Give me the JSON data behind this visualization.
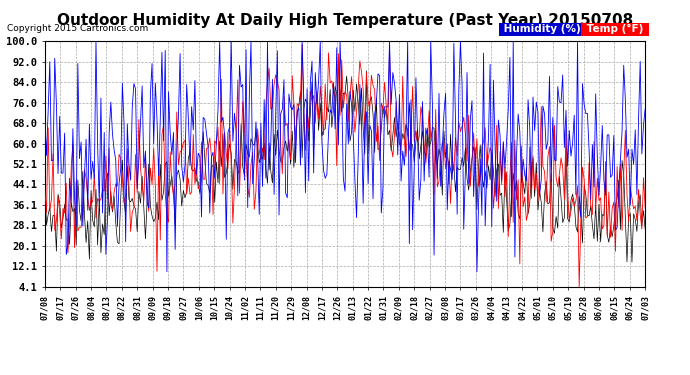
{
  "title": "Outdoor Humidity At Daily High Temperature (Past Year) 20150708",
  "copyright": "Copyright 2015 Cartronics.com",
  "legend_humidity": "Humidity (%)",
  "legend_temp": "Temp (°F)",
  "yticks": [
    4.1,
    12.1,
    20.1,
    28.1,
    36.1,
    44.1,
    52.1,
    60.0,
    68.0,
    76.0,
    84.0,
    92.0,
    100.0
  ],
  "ylim": [
    4.1,
    100.0
  ],
  "bg_color": "#ffffff",
  "plot_bg": "#ffffff",
  "grid_color": "#aaaaaa",
  "title_fontsize": 11,
  "color_humidity": "#0000ff",
  "color_temp": "#ff0000",
  "color_black": "#000000",
  "xtick_labels": [
    "07/08",
    "07/17",
    "07/26",
    "08/04",
    "08/13",
    "08/22",
    "08/31",
    "09/09",
    "09/18",
    "09/27",
    "10/06",
    "10/15",
    "10/24",
    "11/02",
    "11/11",
    "11/20",
    "11/29",
    "12/08",
    "12/17",
    "12/26",
    "01/13",
    "01/22",
    "01/31",
    "02/09",
    "02/18",
    "02/27",
    "03/08",
    "03/17",
    "03/26",
    "04/04",
    "04/13",
    "04/22",
    "05/01",
    "05/10",
    "05/19",
    "05/28",
    "06/06",
    "06/15",
    "06/24",
    "07/03"
  ],
  "n_points": 365
}
